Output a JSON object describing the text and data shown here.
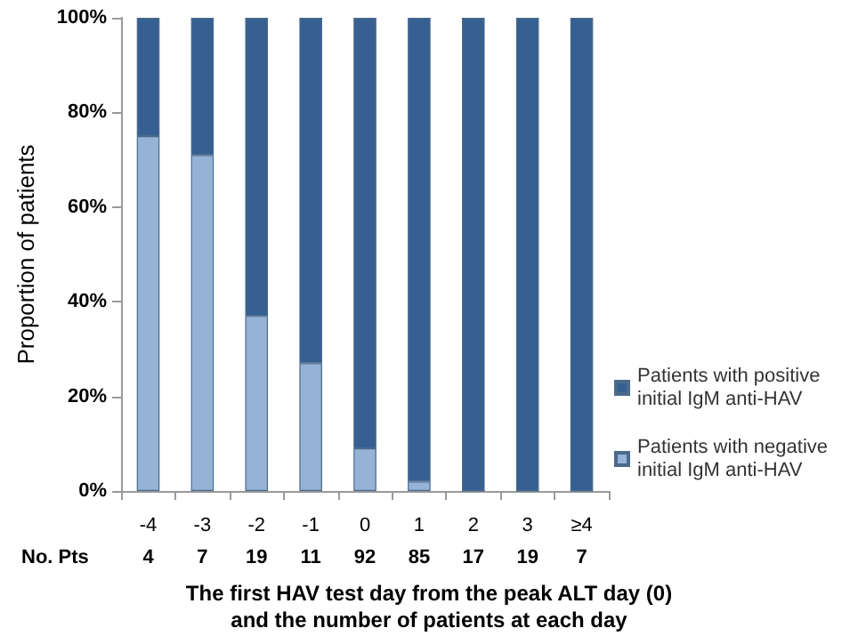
{
  "chart_data": {
    "type": "bar",
    "stacked": true,
    "categories": [
      "-4",
      "-3",
      "-2",
      "-1",
      "0",
      "1",
      "2",
      "3",
      "≥4"
    ],
    "series": [
      {
        "name": "Patients with negative initial IgM anti-HAV",
        "color": "#95b3d7",
        "values": [
          75,
          71,
          37,
          27,
          9,
          2,
          0,
          0,
          0
        ]
      },
      {
        "name": "Patients with positive initial IgM anti-HAV",
        "color": "#366092",
        "values": [
          25,
          29,
          63,
          73,
          91,
          98,
          100,
          100,
          100
        ]
      }
    ],
    "ylim": [
      0,
      100
    ],
    "yticks": [
      {
        "value": 0,
        "label": "0%"
      },
      {
        "value": 20,
        "label": "20%"
      },
      {
        "value": 40,
        "label": "40%"
      },
      {
        "value": 60,
        "label": "60%"
      },
      {
        "value": 80,
        "label": "80%"
      },
      {
        "value": 100,
        "label": "100%"
      }
    ],
    "ylabel": "Proportion of patients",
    "xlabel": "The first HAV test day from the peak ALT day (0)\nand the number of patients at each day",
    "annotations": [
      "No. Pts",
      "4",
      "7",
      "19",
      "11",
      "92",
      "85",
      "17",
      "19",
      "7"
    ],
    "legend": "right",
    "grid": false
  }
}
